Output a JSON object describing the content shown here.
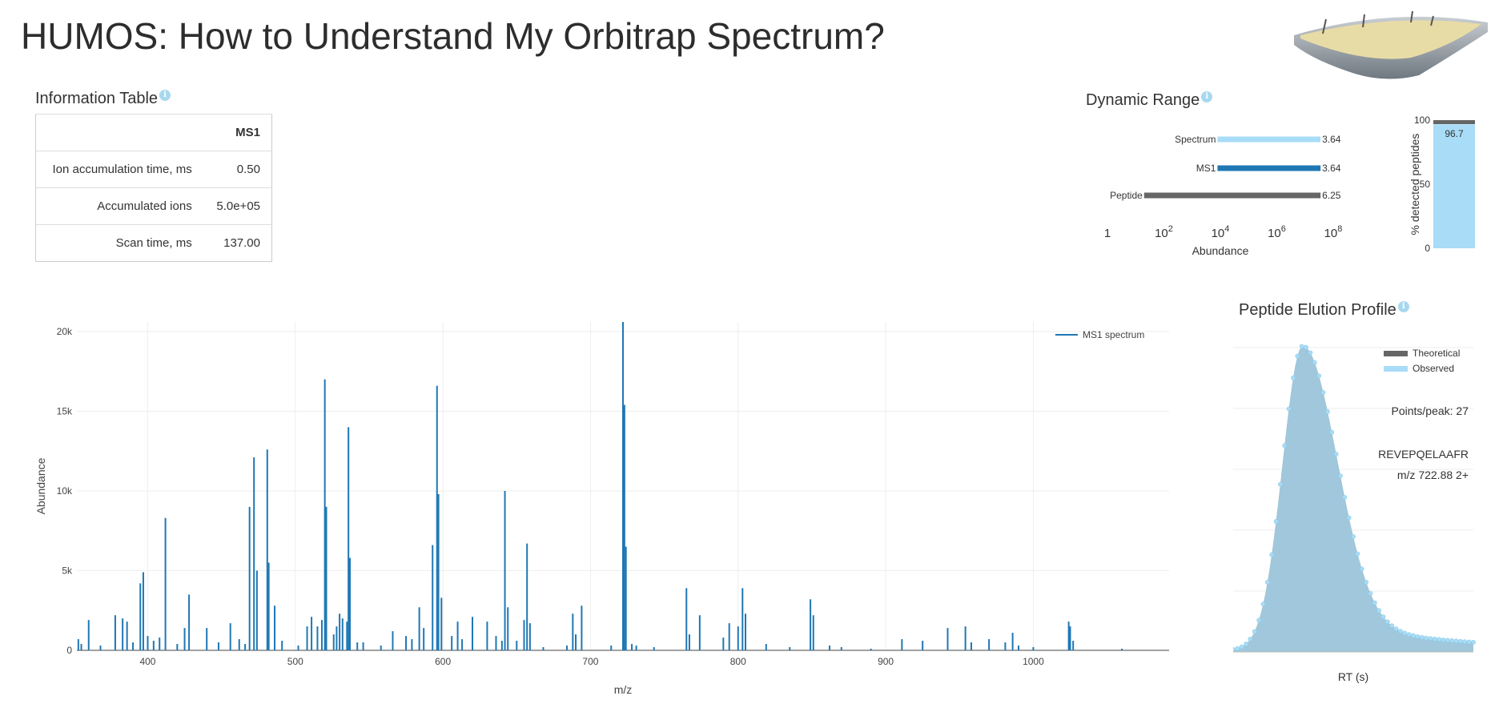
{
  "page": {
    "title": "HUMOS: How to Understand My Orbitrap Spectrum?"
  },
  "info_table": {
    "title": "Information Table",
    "info_icon": "i",
    "header": [
      "",
      "MS1"
    ],
    "rows": [
      [
        "Ion accumulation time, ms",
        "0.50"
      ],
      [
        "Accumulated ions",
        "5.0e+05"
      ],
      [
        "Scan time, ms",
        "137.00"
      ]
    ]
  },
  "dynamic_range": {
    "title": "Dynamic Range",
    "info_icon": "i",
    "xlabel": "Abundance",
    "ticks": [
      "1",
      "10",
      "10",
      "10",
      "10"
    ],
    "tick_exps": [
      "",
      "2",
      "4",
      "6",
      "8"
    ],
    "bars": [
      {
        "label": "Spectrum",
        "value_label": "3.64",
        "start_exp": 3.9,
        "end_exp": 7.55,
        "color": "#a8dcf7"
      },
      {
        "label": "MS1",
        "value_label": "3.64",
        "start_exp": 3.9,
        "end_exp": 7.55,
        "color": "#1f77b4"
      },
      {
        "label": "Peptide",
        "value_label": "6.25",
        "start_exp": 1.3,
        "end_exp": 7.55,
        "color": "#666666"
      }
    ],
    "detected": {
      "ylabel": "% detected peptides",
      "yticks": [
        "0",
        "50",
        "100"
      ],
      "value": 96.7,
      "value_label": "96.7",
      "fill_color": "#a8dcf7",
      "cap_color": "#666666"
    }
  },
  "spectrum": {
    "chart_data": {
      "type": "line",
      "series": [
        {
          "name": "MS1 spectrum",
          "color": "#1f77b4"
        }
      ],
      "xlabel": "m/z",
      "ylabel": "Abundance",
      "xlim": [
        352,
        1092
      ],
      "ylim": [
        0,
        20600
      ],
      "xticks": [
        "400",
        "500",
        "600",
        "700",
        "800",
        "900",
        "1000"
      ],
      "yticks": [
        "0",
        "5k",
        "10k",
        "15k",
        "20k"
      ],
      "peaks": [
        [
          353,
          700
        ],
        [
          355,
          400
        ],
        [
          360,
          1900
        ],
        [
          368,
          300
        ],
        [
          378,
          2200
        ],
        [
          383,
          2000
        ],
        [
          386,
          1800
        ],
        [
          390,
          500
        ],
        [
          395,
          4200
        ],
        [
          397,
          4900
        ],
        [
          400,
          900
        ],
        [
          404,
          600
        ],
        [
          408,
          800
        ],
        [
          412,
          8300
        ],
        [
          420,
          400
        ],
        [
          425,
          1400
        ],
        [
          428,
          3500
        ],
        [
          440,
          1400
        ],
        [
          448,
          500
        ],
        [
          456,
          1700
        ],
        [
          462,
          700
        ],
        [
          466,
          400
        ],
        [
          469,
          9000
        ],
        [
          472,
          12100
        ],
        [
          474,
          5000
        ],
        [
          481,
          12600
        ],
        [
          482,
          5500
        ],
        [
          486,
          2800
        ],
        [
          491,
          600
        ],
        [
          502,
          300
        ],
        [
          508,
          1500
        ],
        [
          511,
          2100
        ],
        [
          515,
          1500
        ],
        [
          518,
          1900
        ],
        [
          520,
          17000
        ],
        [
          521,
          9000
        ],
        [
          526,
          1000
        ],
        [
          528,
          1500
        ],
        [
          530,
          2300
        ],
        [
          532,
          2000
        ],
        [
          535,
          1800
        ],
        [
          536,
          14000
        ],
        [
          537,
          5800
        ],
        [
          542,
          500
        ],
        [
          546,
          500
        ],
        [
          558,
          300
        ],
        [
          566,
          1200
        ],
        [
          575,
          900
        ],
        [
          579,
          700
        ],
        [
          584,
          2700
        ],
        [
          587,
          1400
        ],
        [
          593,
          6600
        ],
        [
          596,
          16600
        ],
        [
          597,
          9800
        ],
        [
          599,
          3300
        ],
        [
          606,
          900
        ],
        [
          610,
          1800
        ],
        [
          613,
          700
        ],
        [
          620,
          2100
        ],
        [
          630,
          1800
        ],
        [
          636,
          900
        ],
        [
          640,
          600
        ],
        [
          642,
          10000
        ],
        [
          644,
          2700
        ],
        [
          650,
          600
        ],
        [
          655,
          1900
        ],
        [
          657,
          6700
        ],
        [
          659,
          1700
        ],
        [
          668,
          200
        ],
        [
          684,
          300
        ],
        [
          688,
          2300
        ],
        [
          690,
          1000
        ],
        [
          694,
          2800
        ],
        [
          714,
          300
        ],
        [
          722,
          20600
        ],
        [
          723,
          15400
        ],
        [
          724,
          6500
        ],
        [
          728,
          400
        ],
        [
          731,
          300
        ],
        [
          743,
          200
        ],
        [
          765,
          3900
        ],
        [
          767,
          1000
        ],
        [
          774,
          2200
        ],
        [
          790,
          800
        ],
        [
          794,
          1700
        ],
        [
          800,
          1500
        ],
        [
          803,
          3900
        ],
        [
          805,
          2300
        ],
        [
          819,
          400
        ],
        [
          835,
          200
        ],
        [
          849,
          3200
        ],
        [
          851,
          2200
        ],
        [
          862,
          300
        ],
        [
          870,
          200
        ],
        [
          890,
          100
        ],
        [
          911,
          700
        ],
        [
          925,
          600
        ],
        [
          942,
          1400
        ],
        [
          954,
          1500
        ],
        [
          958,
          500
        ],
        [
          970,
          700
        ],
        [
          981,
          500
        ],
        [
          986,
          1100
        ],
        [
          990,
          300
        ],
        [
          1000,
          200
        ],
        [
          1024,
          1800
        ],
        [
          1025,
          1500
        ],
        [
          1027,
          600
        ],
        [
          1060,
          100
        ]
      ]
    }
  },
  "elution": {
    "title": "Peptide Elution Profile",
    "info_icon": "i",
    "xlabel": "RT (s)",
    "legend": [
      {
        "name": "Theoretical",
        "color": "#666666"
      },
      {
        "name": "Observed",
        "color": "#a8dcf7"
      }
    ],
    "points_per_peak": "Points/peak: 27",
    "peptide": "REVEPQELAAFR",
    "mz_label": "m/z 722.88 2+",
    "chart_data": {
      "type": "area",
      "series": [
        {
          "name": "Theoretical"
        },
        {
          "name": "Observed"
        }
      ],
      "xlabel": "RT (s)",
      "ylim": [
        0,
        1
      ],
      "peak_points": 27
    }
  }
}
